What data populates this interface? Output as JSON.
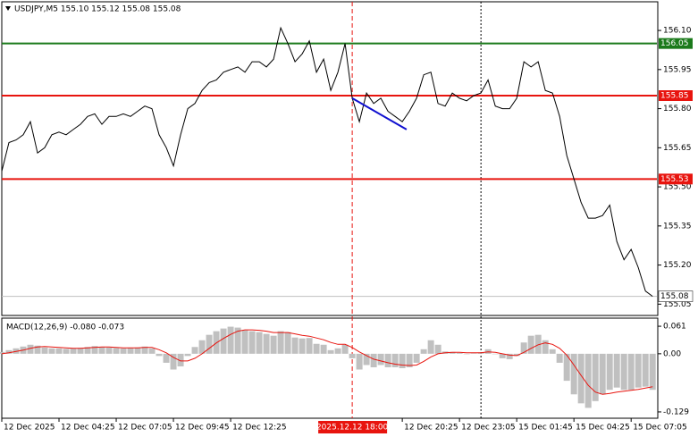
{
  "chart_data": [
    {
      "type": "line",
      "title": "USDJPY,M5  155.10 155.12 155.08 155.08",
      "color": "#000000",
      "xlim": [
        0,
        91.6
      ],
      "ylim": [
        155.01,
        156.21
      ],
      "yticks": [
        155.05,
        {
          "value": 155.2,
          "label": "155.20"
        },
        155.35,
        {
          "value": 155.5,
          "label": "155.50"
        },
        155.65,
        {
          "value": 155.8,
          "label": "155.80"
        },
        155.95,
        {
          "value": 156.1,
          "label": "156.10"
        }
      ],
      "values": [
        155.56,
        155.67,
        155.68,
        155.7,
        155.75,
        155.63,
        155.65,
        155.7,
        155.71,
        155.7,
        155.72,
        155.74,
        155.77,
        155.78,
        155.74,
        155.77,
        155.77,
        155.78,
        155.77,
        155.79,
        155.81,
        155.8,
        155.7,
        155.65,
        155.58,
        155.7,
        155.8,
        155.82,
        155.87,
        155.9,
        155.91,
        155.94,
        155.95,
        155.96,
        155.94,
        155.98,
        155.98,
        155.96,
        155.99,
        156.11,
        156.05,
        155.98,
        156.01,
        156.06,
        155.94,
        155.99,
        155.87,
        155.94,
        156.05,
        155.84,
        155.75,
        155.86,
        155.82,
        155.84,
        155.79,
        155.77,
        155.75,
        155.79,
        155.84,
        155.93,
        155.94,
        155.82,
        155.81,
        155.86,
        155.84,
        155.83,
        155.85,
        155.86,
        155.91,
        155.81,
        155.8,
        155.8,
        155.84,
        155.98,
        155.96,
        155.98,
        155.87,
        155.86,
        155.77,
        155.62,
        155.53,
        155.44,
        155.38,
        155.38,
        155.39,
        155.43,
        155.29,
        155.22,
        155.26,
        155.19,
        155.1,
        155.08
      ],
      "levels": [
        {
          "value": 156.05,
          "color": "#1b7a1b"
        },
        {
          "value": 155.85,
          "color": "#e8140e"
        },
        {
          "value": 155.53,
          "color": "#e8140e"
        }
      ],
      "last": 155.08,
      "trendline": {
        "x": [
          49,
          56.6
        ],
        "values": [
          155.84,
          155.72
        ],
        "color": "#1010d0"
      },
      "crosshair": {
        "x": 49,
        "label": "2025.12.12 18:00"
      },
      "vline": 67
    },
    {
      "type": "macd",
      "title": "MACD(12,26,9) -0.080 -0.073",
      "xlim": [
        0,
        91.6
      ],
      "ylim": [
        -0.143,
        0.077
      ],
      "yticks": [
        0.061,
        {
          "value": 0,
          "label": "0.00"
        },
        -0.129
      ],
      "xticks": [
        {
          "value": 0,
          "label": "12 Dec 2025"
        },
        {
          "value": 8,
          "label": "12 Dec 04:25"
        },
        {
          "value": 16,
          "label": "12 Dec 07:05"
        },
        {
          "value": 24,
          "label": "12 Dec 09:45"
        },
        {
          "value": 32,
          "label": "12 Dec 12:25"
        },
        {
          "value": 56,
          "label": "12 Dec 20:25"
        },
        {
          "value": 64,
          "label": "12 Dec 23:05"
        },
        {
          "value": 72,
          "label": "15 Dec 01:45"
        },
        {
          "value": 80,
          "label": "15 Dec 04:25"
        },
        {
          "value": 88,
          "label": "15 Dec 07:05"
        }
      ],
      "histogram_color": "#c0c0c0",
      "signal_color": "#e8140e",
      "histogram": [
        0.004,
        0.008,
        0.012,
        0.016,
        0.02,
        0.018,
        0.014,
        0.012,
        0.012,
        0.011,
        0.012,
        0.013,
        0.015,
        0.017,
        0.015,
        0.014,
        0.013,
        0.012,
        0.013,
        0.014,
        0.016,
        0.012,
        -0.005,
        -0.02,
        -0.035,
        -0.028,
        -0.005,
        0.015,
        0.03,
        0.042,
        0.05,
        0.056,
        0.06,
        0.058,
        0.052,
        0.05,
        0.048,
        0.044,
        0.04,
        0.05,
        0.048,
        0.036,
        0.034,
        0.035,
        0.022,
        0.02,
        0.008,
        0.012,
        0.02,
        -0.01,
        -0.035,
        -0.025,
        -0.03,
        -0.025,
        -0.03,
        -0.03,
        -0.032,
        -0.03,
        -0.02,
        0.01,
        0.03,
        0.02,
        0.005,
        0.004,
        0.002,
        0.0,
        0.001,
        0.003,
        0.01,
        0.0,
        -0.01,
        -0.012,
        -0.005,
        0.025,
        0.04,
        0.042,
        0.03,
        0.01,
        -0.02,
        -0.06,
        -0.09,
        -0.11,
        -0.12,
        -0.105,
        -0.09,
        -0.08,
        -0.075,
        -0.08,
        -0.08,
        -0.075,
        -0.073,
        -0.08
      ],
      "signal": [
        0.0,
        0.002,
        0.005,
        0.008,
        0.012,
        0.015,
        0.016,
        0.015,
        0.014,
        0.013,
        0.012,
        0.012,
        0.013,
        0.014,
        0.015,
        0.015,
        0.014,
        0.013,
        0.013,
        0.013,
        0.014,
        0.014,
        0.009,
        0.002,
        -0.008,
        -0.016,
        -0.016,
        -0.01,
        0.0,
        0.012,
        0.024,
        0.034,
        0.043,
        0.05,
        0.053,
        0.053,
        0.052,
        0.05,
        0.047,
        0.047,
        0.047,
        0.044,
        0.041,
        0.039,
        0.035,
        0.031,
        0.025,
        0.021,
        0.021,
        0.014,
        0.004,
        -0.004,
        -0.012,
        -0.016,
        -0.02,
        -0.023,
        -0.025,
        -0.026,
        -0.025,
        -0.017,
        -0.007,
        0.0,
        0.002,
        0.003,
        0.003,
        0.002,
        0.002,
        0.002,
        0.004,
        0.003,
        0.0,
        -0.003,
        -0.004,
        0.003,
        0.012,
        0.02,
        0.024,
        0.021,
        0.012,
        -0.003,
        -0.025,
        -0.048,
        -0.07,
        -0.085,
        -0.09,
        -0.088,
        -0.085,
        -0.083,
        -0.081,
        -0.079,
        -0.076,
        -0.073
      ]
    }
  ]
}
